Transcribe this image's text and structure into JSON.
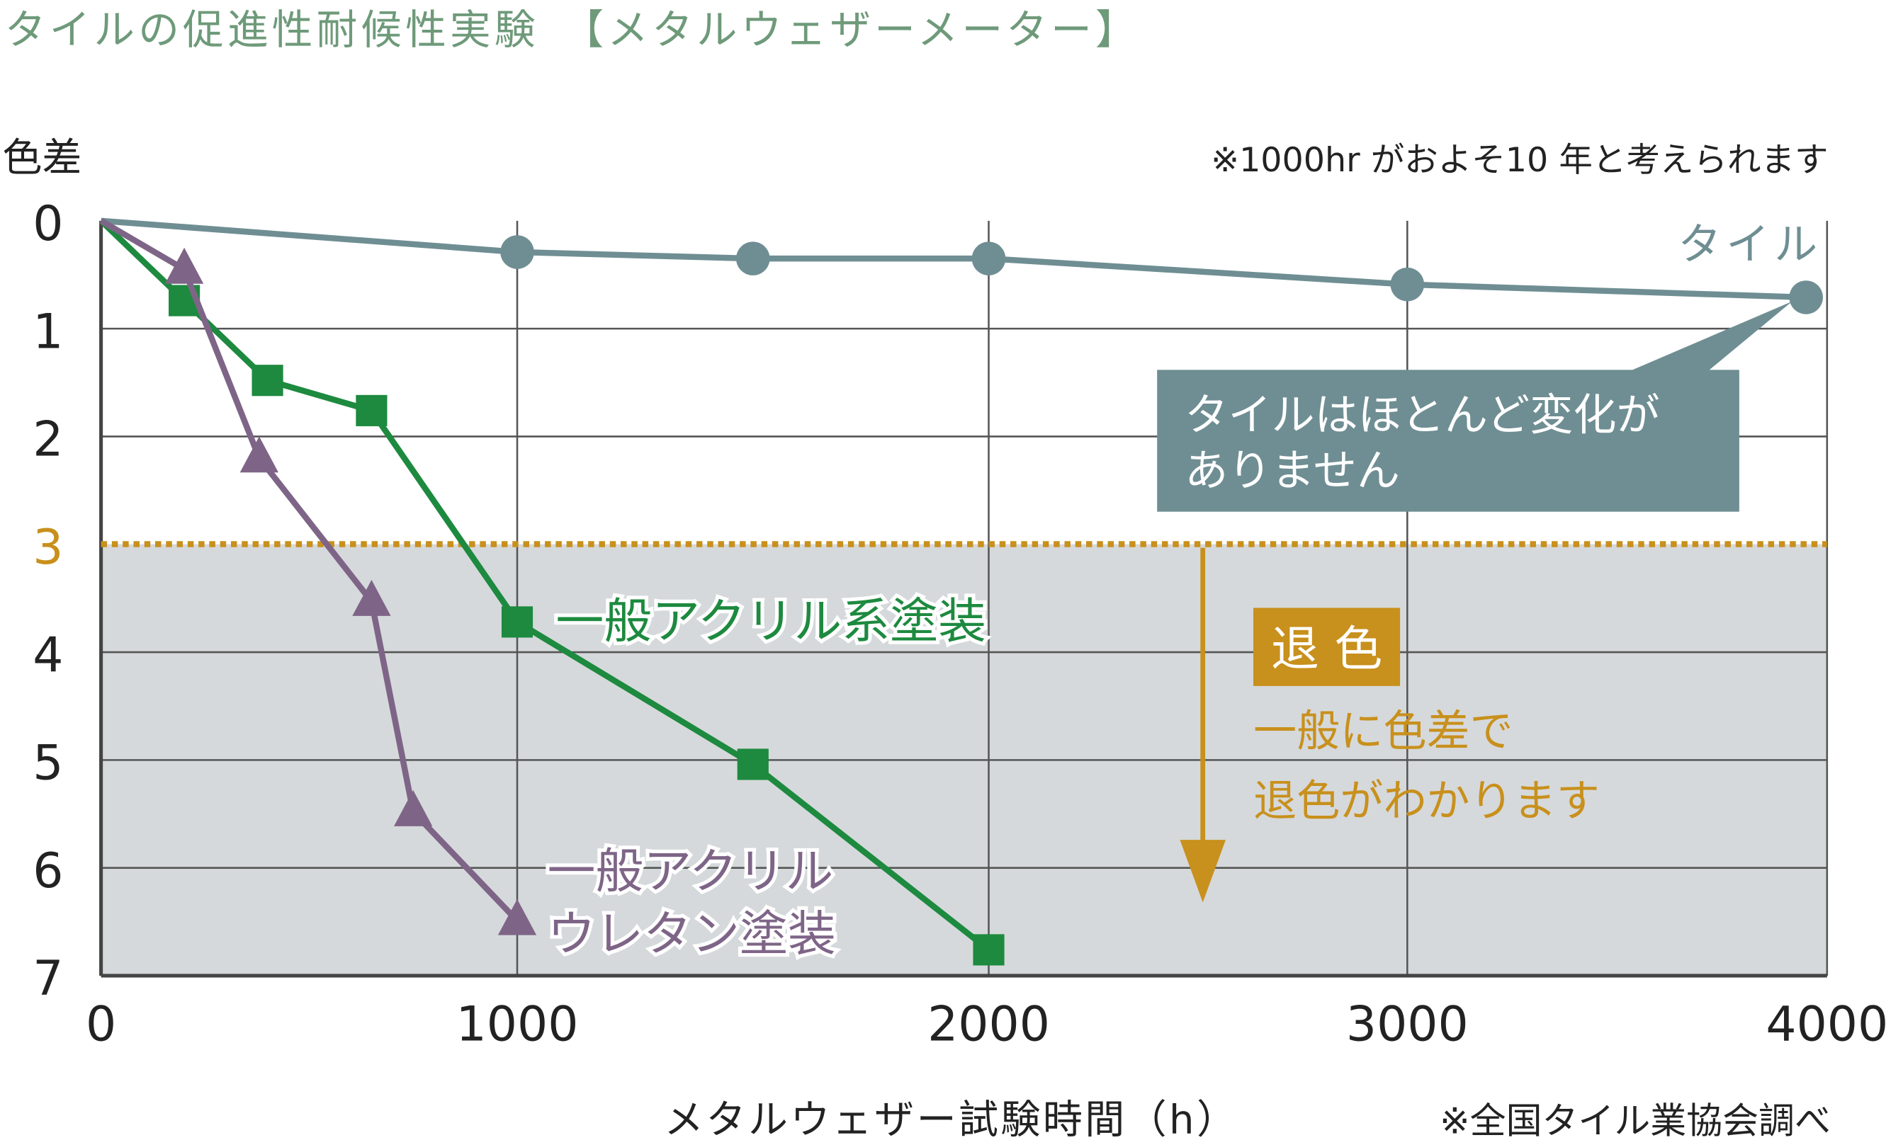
{
  "chart_data": {
    "type": "line",
    "title": "タイルの促進性耐候性実験　【メタルウェザーメーター】",
    "ylabel": "色差",
    "xlabel": "メタルウェザー試験時間（h）",
    "note_top": "※1000hr がおよそ10 年と考えられます",
    "source": "※全国タイル業協会調べ",
    "xlim": [
      0,
      4000
    ],
    "ylim": [
      0,
      7
    ],
    "y_inverted": true,
    "grid": true,
    "x_ticks": [
      0,
      1000,
      2000,
      3000,
      4000
    ],
    "x_tick_labels": [
      "0",
      "1000",
      "2000",
      "3000",
      "4000"
    ],
    "y_ticks": [
      0,
      1,
      2,
      3,
      4,
      5,
      6,
      7
    ],
    "y_tick_labels": [
      "0",
      "1",
      "2",
      "3",
      "4",
      "5",
      "6",
      "7"
    ],
    "threshold": {
      "value": 3,
      "color": "#c8901c"
    },
    "series": [
      {
        "name": "タイル",
        "marker": "circle",
        "color": "#6f8e93",
        "x": [
          0,
          1000,
          1500,
          2000,
          3000,
          3950
        ],
        "y": [
          0,
          0.29,
          0.35,
          0.35,
          0.59,
          0.71
        ]
      },
      {
        "name": "一般アクリル系塗装",
        "marker": "square",
        "color": "#1d8a3f",
        "x": [
          0,
          200,
          400,
          650,
          1000,
          1500,
          2000
        ],
        "y": [
          0,
          0.74,
          1.48,
          1.76,
          3.72,
          5.04,
          6.76
        ]
      },
      {
        "name": "一般アクリルウレタン塗装",
        "label_lines": [
          "一般アクリル",
          "ウレタン塗装"
        ],
        "marker": "triangle",
        "color": "#7e6587",
        "x": [
          0,
          200,
          380,
          650,
          750,
          1000
        ],
        "y": [
          0,
          0.45,
          2.2,
          3.53,
          5.48,
          6.49
        ]
      }
    ],
    "annotations": {
      "tile_callout": [
        "タイルはほとんど変化が",
        "ありません"
      ],
      "fade_badge": "退 色",
      "fade_text": [
        "一般に色差で",
        "退色がわかります"
      ]
    }
  },
  "colors": {
    "title": "#6e9a7a",
    "shade": "#d6d9db",
    "grid": "#555555",
    "gold": "#c8901c",
    "callout_bg": "#6f8e93"
  }
}
